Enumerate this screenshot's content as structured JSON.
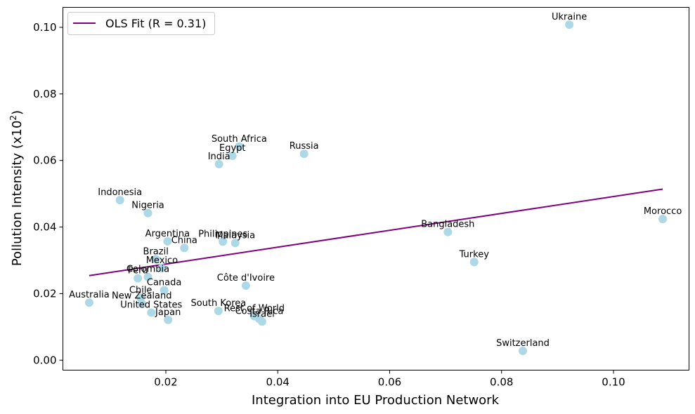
{
  "chart_data": {
    "type": "scatter",
    "title": "",
    "xlabel": "Integration into EU Production Network",
    "ylabel_main": "Pollution Intensity (x10",
    "ylabel_sup": "2",
    "ylabel_close": ")",
    "xlim": [
      0.0016,
      0.1135
    ],
    "ylim": [
      -0.003,
      0.106
    ],
    "x_ticks": [
      0.02,
      0.04,
      0.06,
      0.08,
      0.1
    ],
    "x_tick_labels": [
      "0.02",
      "0.04",
      "0.06",
      "0.08",
      "0.10"
    ],
    "y_ticks": [
      0.0,
      0.02,
      0.04,
      0.06,
      0.08,
      0.1
    ],
    "y_tick_labels": [
      "0.00",
      "0.02",
      "0.04",
      "0.06",
      "0.08",
      "0.10"
    ],
    "grid": false,
    "legend": {
      "placement": "top-left",
      "entries": [
        {
          "label": "OLS Fit (R = 0.31)",
          "color": "#800080"
        }
      ]
    },
    "fit_line": {
      "x": [
        0.0063,
        0.1088
      ],
      "y": [
        0.0254,
        0.0514
      ],
      "color": "#800080"
    },
    "marker_color": "#add8e6",
    "points": [
      {
        "label": "Ukraine",
        "x": 0.0921,
        "y": 0.1008
      },
      {
        "label": "South Africa",
        "x": 0.0331,
        "y": 0.0642
      },
      {
        "label": "Egypt",
        "x": 0.0319,
        "y": 0.0614
      },
      {
        "label": "India",
        "x": 0.0295,
        "y": 0.0589
      },
      {
        "label": "Russia",
        "x": 0.0447,
        "y": 0.062
      },
      {
        "label": "Indonesia",
        "x": 0.0118,
        "y": 0.0481
      },
      {
        "label": "Nigeria",
        "x": 0.0168,
        "y": 0.0442
      },
      {
        "label": "Morocco",
        "x": 0.1088,
        "y": 0.0424
      },
      {
        "label": "Bangladesh",
        "x": 0.0704,
        "y": 0.0385
      },
      {
        "label": "Argentina",
        "x": 0.0203,
        "y": 0.0357
      },
      {
        "label": "China",
        "x": 0.0233,
        "y": 0.0337
      },
      {
        "label": "Philippines",
        "x": 0.0302,
        "y": 0.0356
      },
      {
        "label": "Malaysia",
        "x": 0.0324,
        "y": 0.0352
      },
      {
        "label": "Brazil",
        "x": 0.0182,
        "y": 0.0303
      },
      {
        "label": "Mexico",
        "x": 0.0193,
        "y": 0.0277
      },
      {
        "label": "Turkey",
        "x": 0.0751,
        "y": 0.0295
      },
      {
        "label": "Colombia",
        "x": 0.0168,
        "y": 0.025
      },
      {
        "label": "Peru",
        "x": 0.015,
        "y": 0.0246
      },
      {
        "label": "Côte d'Ivoire",
        "x": 0.0343,
        "y": 0.0224
      },
      {
        "label": "Canada",
        "x": 0.0197,
        "y": 0.021
      },
      {
        "label": "Chile",
        "x": 0.0155,
        "y": 0.0187
      },
      {
        "label": "New Zealand",
        "x": 0.0157,
        "y": 0.017
      },
      {
        "label": "Australia",
        "x": 0.0063,
        "y": 0.0173
      },
      {
        "label": "United States",
        "x": 0.0174,
        "y": 0.0143
      },
      {
        "label": "Japan",
        "x": 0.0204,
        "y": 0.0121
      },
      {
        "label": "South Korea",
        "x": 0.0294,
        "y": 0.0148
      },
      {
        "label": "Rest of World",
        "x": 0.0358,
        "y": 0.0132
      },
      {
        "label": "Costa Rica",
        "x": 0.0367,
        "y": 0.0124
      },
      {
        "label": "Israel",
        "x": 0.0372,
        "y": 0.0116
      },
      {
        "label": "Switzerland",
        "x": 0.0838,
        "y": 0.0028
      }
    ]
  }
}
